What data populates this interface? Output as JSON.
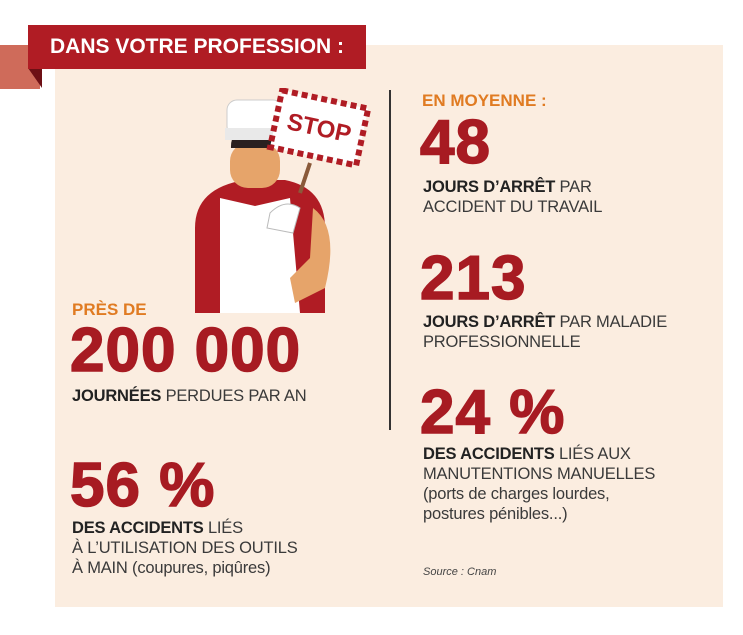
{
  "header": {
    "title": "DANS VOTRE PROFESSION :"
  },
  "illustration": {
    "sign": "STOP"
  },
  "left": [
    {
      "intro": "PRÈS DE",
      "number": "200 000",
      "bold": "JOURNÉES",
      "text": " PERDUES PAR AN"
    },
    {
      "number": "56 %",
      "bold": "DES ACCIDENTS",
      "text": " LIÉS\nÀ L’UTILISATION DES OUTILS\nÀ MAIN (coupures, piqûres)"
    }
  ],
  "right": {
    "intro": "EN MOYENNE :",
    "stats": [
      {
        "number": "48",
        "bold": "JOURS  D’ARRÊT",
        "text": " PAR\nACCIDENT DU TRAVAIL"
      },
      {
        "number": "213",
        "bold": "JOURS D’ARRÊT",
        "text": " PAR MALADIE\nPROFESSIONNELLE"
      },
      {
        "number": "24 %",
        "bold": "DES ACCIDENTS",
        "text": " LIÉS AUX\nMANUTENTIONS MANUELLES\n(ports de charges lourdes,\npostures pénibles...)"
      }
    ]
  },
  "source": "Source : Cnam"
}
